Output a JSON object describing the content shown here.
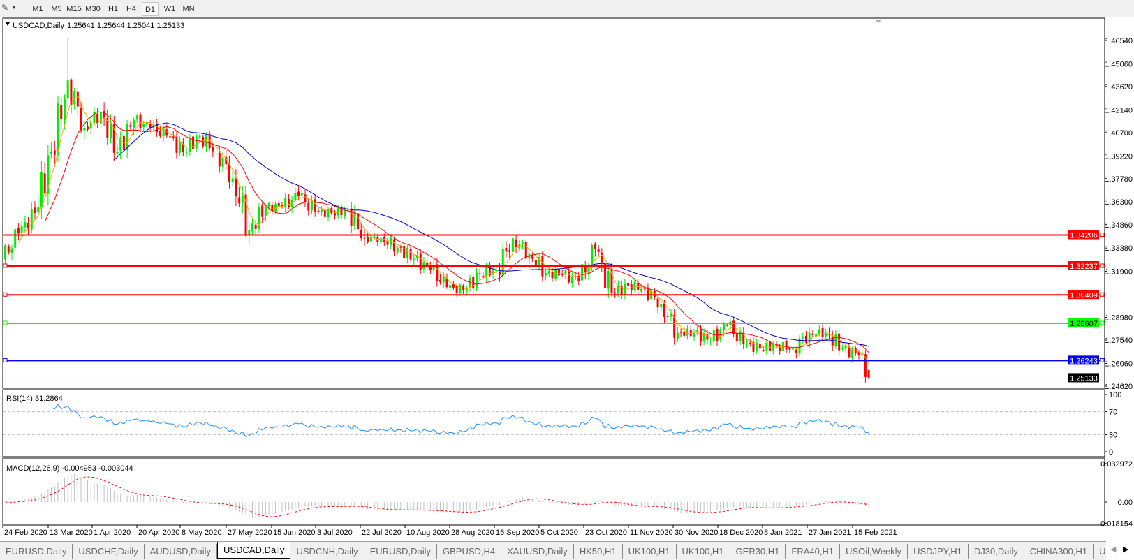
{
  "toolbar": {
    "timeframes": [
      "M1",
      "M5",
      "M15",
      "M30",
      "H1",
      "H4",
      "D1",
      "W1",
      "MN"
    ],
    "active": "D1"
  },
  "chart": {
    "symbol_label": "USDCAD,Daily",
    "ohlc_label": "1.25641 1.25644 1.25041 1.25133",
    "price_ticks": [
      "1.46540",
      "1.45060",
      "1.43620",
      "1.42140",
      "1.40700",
      "1.39220",
      "1.37780",
      "1.36300",
      "1.34860",
      "1.33380",
      "1.31900",
      "1.28980",
      "1.27540",
      "1.26060",
      "1.24620"
    ],
    "current_price": "1.25133",
    "hlines": [
      {
        "price": "1.34206",
        "color": "#ff0000"
      },
      {
        "price": "1.32237",
        "color": "#ff0000"
      },
      {
        "price": "1.30409",
        "color": "#ff0000"
      },
      {
        "price": "1.28607",
        "color": "#00ff00"
      },
      {
        "price": "1.26243",
        "color": "#0000ff"
      }
    ],
    "date_labels": [
      "24 Feb 2020",
      "13 Mar 2020",
      "1 Apr 2020",
      "20 Apr 2020",
      "8 May 2020",
      "27 May 2020",
      "15 Jun 2020",
      "3 Jul 2020",
      "22 Jul 2020",
      "10 Aug 2020",
      "28 Aug 2020",
      "16 Sep 2020",
      "5 Oct 2020",
      "23 Oct 2020",
      "11 Nov 2020",
      "30 Nov 2020",
      "18 Dec 2020",
      "8 Jan 2021",
      "27 Jan 2021",
      "15 Feb 2021"
    ],
    "colors": {
      "bull": "#00ee00",
      "bear": "#ff0000",
      "ma_fast": "#ffa500",
      "ma_mid": "#ff0000",
      "ma_slow": "#0000cc",
      "rsi": "#1e90ff",
      "macd_hist": "#c0c0c0",
      "macd_signal": "#ff0000"
    }
  },
  "rsi": {
    "label": "RSI(14) 31.2864",
    "ticks": [
      "100",
      "70",
      "30",
      "0"
    ]
  },
  "macd": {
    "label": "MACD(12,26,9) -0.004953 -0.003044",
    "ticks": [
      "0.032972",
      "0.00",
      "-0.018154"
    ]
  },
  "chart_data": {
    "type": "candlestick",
    "symbol": "USDCAD",
    "timeframe": "Daily",
    "first_open": 1.3265,
    "weekly_closes": [
      1.343,
      1.356,
      1.395,
      1.44,
      1.41,
      1.42,
      1.395,
      1.415,
      1.41,
      1.405,
      1.395,
      1.405,
      1.395,
      1.378,
      1.345,
      1.36,
      1.36,
      1.367,
      1.357,
      1.356,
      1.358,
      1.34,
      1.34,
      1.334,
      1.327,
      1.32,
      1.309,
      1.307,
      1.317,
      1.32,
      1.34,
      1.33,
      1.318,
      1.317,
      1.313,
      1.333,
      1.305,
      1.31,
      1.308,
      1.298,
      1.28,
      1.28,
      1.275,
      1.285,
      1.273,
      1.27,
      1.272,
      1.27,
      1.28,
      1.28,
      1.27,
      1.266,
      1.2513
    ],
    "last_bar": {
      "open": 1.25641,
      "high": 1.25644,
      "low": 1.25041,
      "close": 1.25133
    },
    "peak_high": 1.4667,
    "ylim": [
      1.2462,
      1.4654
    ]
  },
  "tabs": [
    "EURUSD,Daily",
    "USDCHF,Daily",
    "AUDUSD,Daily",
    "USDCAD,Daily",
    "USDCNH,Daily",
    "EURUSD,Daily",
    "GBPUSD,H4",
    "XAUUSD,Daily",
    "HK50,H1",
    "UK100,H1",
    "UK100,H1",
    "GER30,H1",
    "FRA40,H1",
    "USOil,Weekly",
    "USDJPY,H1",
    "DJ30,Daily",
    "CHINA300,H1",
    "U"
  ],
  "active_tab": "USDCAD,Daily"
}
